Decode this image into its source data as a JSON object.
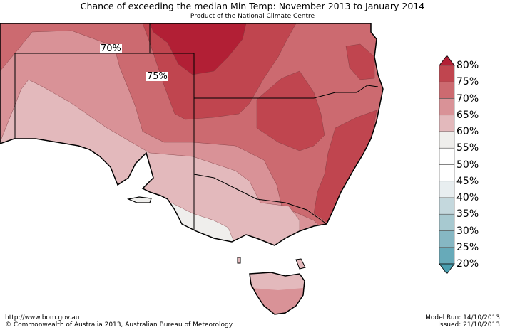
{
  "title": "Chance of exceeding the median Min Temp: November 2013 to January 2014",
  "subtitle": "Product of the National Climate Centre",
  "map_labels": [
    "70%",
    "75%"
  ],
  "legend": {
    "labels": [
      "80%",
      "75%",
      "70%",
      "65%",
      "60%",
      "55%",
      "50%",
      "45%",
      "40%",
      "35%",
      "30%",
      "25%",
      "20%"
    ],
    "colors": [
      "#b21f35",
      "#c0454f",
      "#cc6a70",
      "#d99297",
      "#e3b9bc",
      "#efeeec",
      "#ffffff",
      "#ffffff",
      "#e8eef0",
      "#c4d8dd",
      "#a7c9d0",
      "#86b7c3",
      "#67aab9",
      "#4a9fb0"
    ]
  },
  "footer": {
    "url": "http://www.bom.gov.au",
    "copyright": "©  Commonwealth of Australia 2013, Australian Bureau of Meteorology",
    "model_run": "Model Run: 14/10/2013",
    "issued": "Issued: 21/10/2013"
  }
}
